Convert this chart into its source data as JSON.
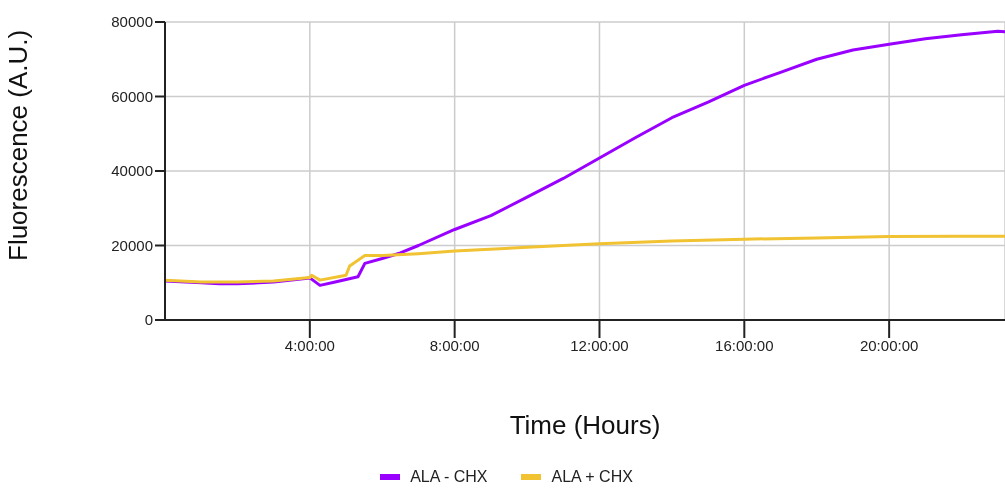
{
  "chart_data": {
    "type": "line",
    "xlabel": "Time (Hours)",
    "ylabel": "Fluorescence (A.U.)",
    "xlim": [
      0,
      23.2
    ],
    "ylim": [
      0,
      80000
    ],
    "xticks": [
      {
        "value": 4,
        "label": "4:00:00"
      },
      {
        "value": 8,
        "label": "8:00:00"
      },
      {
        "value": 12,
        "label": "12:00:00"
      },
      {
        "value": 16,
        "label": "16:00:00"
      },
      {
        "value": 20,
        "label": "20:00:00"
      }
    ],
    "yticks": [
      0,
      20000,
      40000,
      60000,
      80000
    ],
    "grid": true,
    "legend": "bottom",
    "marker": "none",
    "line_style": "solid",
    "series": [
      {
        "name": "ALA - CHX",
        "color": "#9900ff",
        "x": [
          0,
          1,
          1.5,
          2,
          3,
          4,
          4.28,
          4.7,
          5.33,
          5.52,
          6,
          6.5,
          7,
          8,
          9,
          10,
          11,
          12,
          13,
          14,
          15,
          16,
          17,
          18,
          19,
          20,
          21,
          22,
          23,
          23.2
        ],
        "values": [
          10500,
          10000,
          9700,
          9700,
          10200,
          11300,
          9300,
          10200,
          11600,
          15200,
          16500,
          18000,
          20000,
          24300,
          28000,
          33000,
          38000,
          43500,
          49000,
          54300,
          58500,
          63000,
          66500,
          70000,
          72500,
          74000,
          75500,
          76600,
          77500,
          77400
        ]
      },
      {
        "name": "ALA + CHX",
        "color": "#f1c232",
        "x": [
          0,
          1,
          2,
          3,
          4,
          4.05,
          4.28,
          5,
          5.1,
          5.52,
          6,
          7,
          8,
          10,
          12,
          14,
          16,
          18,
          20,
          22,
          23.2
        ],
        "values": [
          10700,
          10200,
          10200,
          10500,
          11400,
          12000,
          10700,
          12000,
          14500,
          17300,
          17300,
          17800,
          18500,
          19500,
          20500,
          21200,
          21700,
          22000,
          22400,
          22500,
          22500
        ]
      }
    ]
  }
}
